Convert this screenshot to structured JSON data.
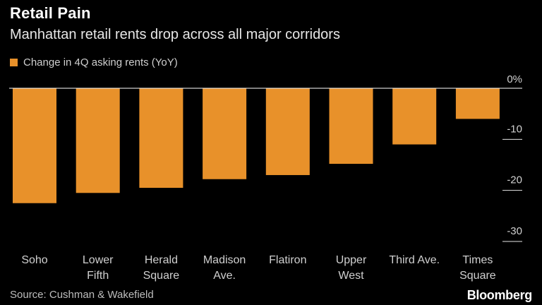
{
  "header": {
    "title": "Retail Pain",
    "subtitle": "Manhattan retail rents drop across all major corridors"
  },
  "legend": {
    "label": "Change in 4Q asking rents (YoY)"
  },
  "footer": {
    "source": "Source: Cushman & Wakefield",
    "brand": "Bloomberg"
  },
  "colors": {
    "bar": "#E8912A",
    "background": "#000000",
    "zero_line": "#ffffff",
    "tick": "#d0d0d0"
  },
  "chart_data": {
    "type": "bar",
    "title": "Retail Pain",
    "subtitle": "Manhattan retail rents drop across all major corridors",
    "categories": [
      [
        "Soho"
      ],
      [
        "Lower",
        "Fifth"
      ],
      [
        "Herald",
        "Square"
      ],
      [
        "Madison",
        "Ave."
      ],
      [
        "Flatiron"
      ],
      [
        "Upper",
        "West"
      ],
      [
        "Third Ave."
      ],
      [
        "Times",
        "Square"
      ]
    ],
    "series": [
      {
        "name": "Change in 4Q asking rents (YoY)",
        "values": [
          -22.5,
          -20.5,
          -19.5,
          -17.8,
          -17.0,
          -14.8,
          -11.0,
          -6.0
        ]
      }
    ],
    "ylim": [
      -30,
      0
    ],
    "yticks": [
      {
        "value": 0,
        "label": "0%"
      },
      {
        "value": -10,
        "label": "-10"
      },
      {
        "value": -20,
        "label": "-20"
      },
      {
        "value": -30,
        "label": "-30"
      }
    ],
    "y_axis_position": "right",
    "grid": false,
    "legend_position": "top-left"
  }
}
